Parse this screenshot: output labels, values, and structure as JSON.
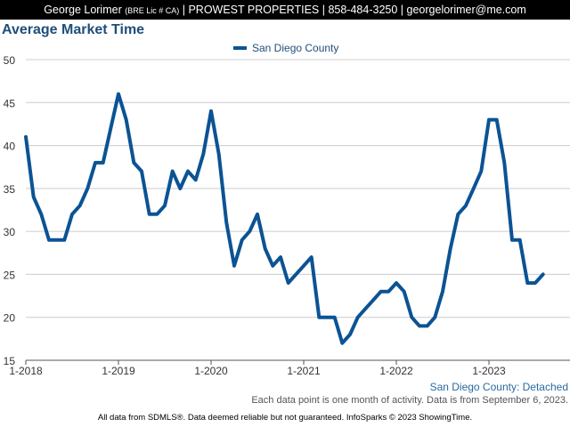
{
  "header": {
    "name": "George Lorimer",
    "license": "(BRE Lic # CA)",
    "sep1": " | ",
    "company": "PROWEST PROPERTIES",
    "sep2": " | ",
    "phone": "858-484-3250",
    "sep3": " | ",
    "email": "georgelorimer@me.com"
  },
  "footer": {
    "geography": "San Diego County: Detached",
    "note": "Each data point is one month of activity. Data is from September 6, 2023.",
    "credit": "All data from SDMLS®. Data deemed reliable but not guaranteed. InfoSparks © 2023 ShowingTime."
  },
  "colors": {
    "series": "#0b5394",
    "title": "#1f4e79",
    "grid": "#cccccc"
  },
  "chart_data": {
    "type": "line",
    "title": "Average Market Time",
    "xlabel": "",
    "ylabel": "",
    "ylim": [
      15,
      50
    ],
    "yticks": [
      15,
      20,
      25,
      30,
      35,
      40,
      45,
      50
    ],
    "xticks": [
      {
        "label": "1-2018",
        "value": "2018-01"
      },
      {
        "label": "1-2019",
        "value": "2019-01"
      },
      {
        "label": "1-2020",
        "value": "2020-01"
      },
      {
        "label": "1-2021",
        "value": "2021-01"
      },
      {
        "label": "1-2022",
        "value": "2022-01"
      },
      {
        "label": "1-2023",
        "value": "2023-01"
      }
    ],
    "x_range": [
      "2018-01",
      "2023-08"
    ],
    "grid": "horizontal",
    "legend": "top-center",
    "x": [
      "2018-01",
      "2018-02",
      "2018-03",
      "2018-04",
      "2018-05",
      "2018-06",
      "2018-07",
      "2018-08",
      "2018-09",
      "2018-10",
      "2018-11",
      "2018-12",
      "2019-01",
      "2019-02",
      "2019-03",
      "2019-04",
      "2019-05",
      "2019-06",
      "2019-07",
      "2019-08",
      "2019-09",
      "2019-10",
      "2019-11",
      "2019-12",
      "2020-01",
      "2020-02",
      "2020-03",
      "2020-04",
      "2020-05",
      "2020-06",
      "2020-07",
      "2020-08",
      "2020-09",
      "2020-10",
      "2020-11",
      "2020-12",
      "2021-01",
      "2021-02",
      "2021-03",
      "2021-04",
      "2021-05",
      "2021-06",
      "2021-07",
      "2021-08",
      "2021-09",
      "2021-10",
      "2021-11",
      "2021-12",
      "2022-01",
      "2022-02",
      "2022-03",
      "2022-04",
      "2022-05",
      "2022-06",
      "2022-07",
      "2022-08",
      "2022-09",
      "2022-10",
      "2022-11",
      "2022-12",
      "2023-01",
      "2023-02",
      "2023-03",
      "2023-04",
      "2023-05",
      "2023-06",
      "2023-07",
      "2023-08"
    ],
    "series": [
      {
        "name": "San Diego County",
        "values": [
          41,
          34,
          32,
          29,
          29,
          29,
          32,
          33,
          35,
          38,
          38,
          42,
          46,
          43,
          38,
          37,
          32,
          32,
          33,
          37,
          35,
          37,
          36,
          39,
          44,
          39,
          31,
          26,
          29,
          30,
          32,
          28,
          26,
          27,
          24,
          25,
          26,
          27,
          20,
          20,
          20,
          17,
          18,
          20,
          21,
          22,
          23,
          23,
          24,
          23,
          20,
          19,
          19,
          20,
          23,
          28,
          32,
          33,
          35,
          37,
          43,
          43,
          38,
          29,
          29,
          24,
          24,
          25
        ]
      }
    ]
  }
}
